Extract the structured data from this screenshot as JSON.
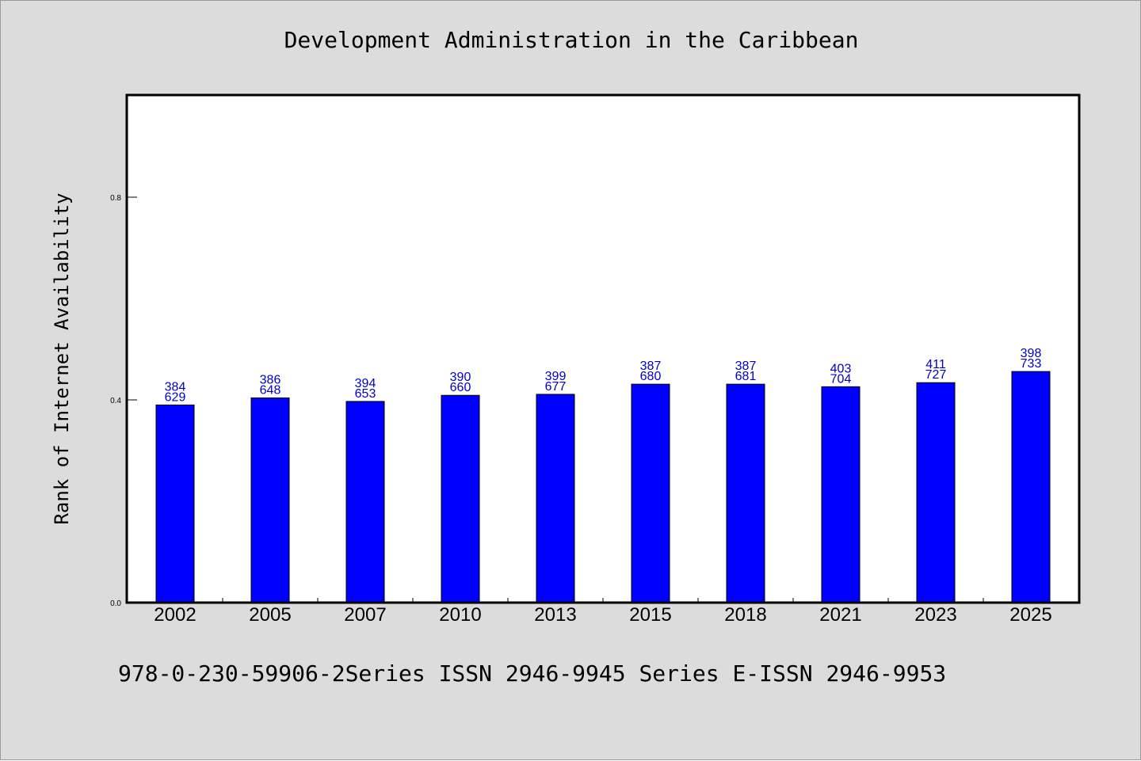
{
  "chart_data": {
    "type": "bar",
    "title": "Development Administration in the Caribbean",
    "xlabel": "",
    "ylabel": "Rank of Internet Availability",
    "categories": [
      "2002",
      "2005",
      "2007",
      "2010",
      "2013",
      "2015",
      "2018",
      "2021",
      "2023",
      "2025"
    ],
    "values": [
      0.39,
      0.404,
      0.397,
      0.409,
      0.411,
      0.431,
      0.431,
      0.426,
      0.434,
      0.456
    ],
    "data_labels": [
      [
        "384",
        "629"
      ],
      [
        "386",
        "648"
      ],
      [
        "394",
        "653"
      ],
      [
        "390",
        "660"
      ],
      [
        "399",
        "677"
      ],
      [
        "387",
        "680"
      ],
      [
        "387",
        "681"
      ],
      [
        "403",
        "704"
      ],
      [
        "411",
        "727"
      ],
      [
        "398",
        "733"
      ]
    ],
    "ylim": [
      0,
      1.0
    ],
    "yticks": [
      "0.0",
      "0.4",
      "0.8"
    ],
    "ytick_values": [
      0.0,
      0.4,
      0.8
    ],
    "grid": false,
    "colors": {
      "bar": "#0000ff",
      "bar_edge": "#000000",
      "data_label": "#0000cc",
      "background": "#dcdcdc",
      "plot_background": "#ffffff"
    }
  },
  "footer": {
    "text": "978-0-230-59906-2Series ISSN 2946-9945 Series E-ISSN 2946-9953"
  }
}
